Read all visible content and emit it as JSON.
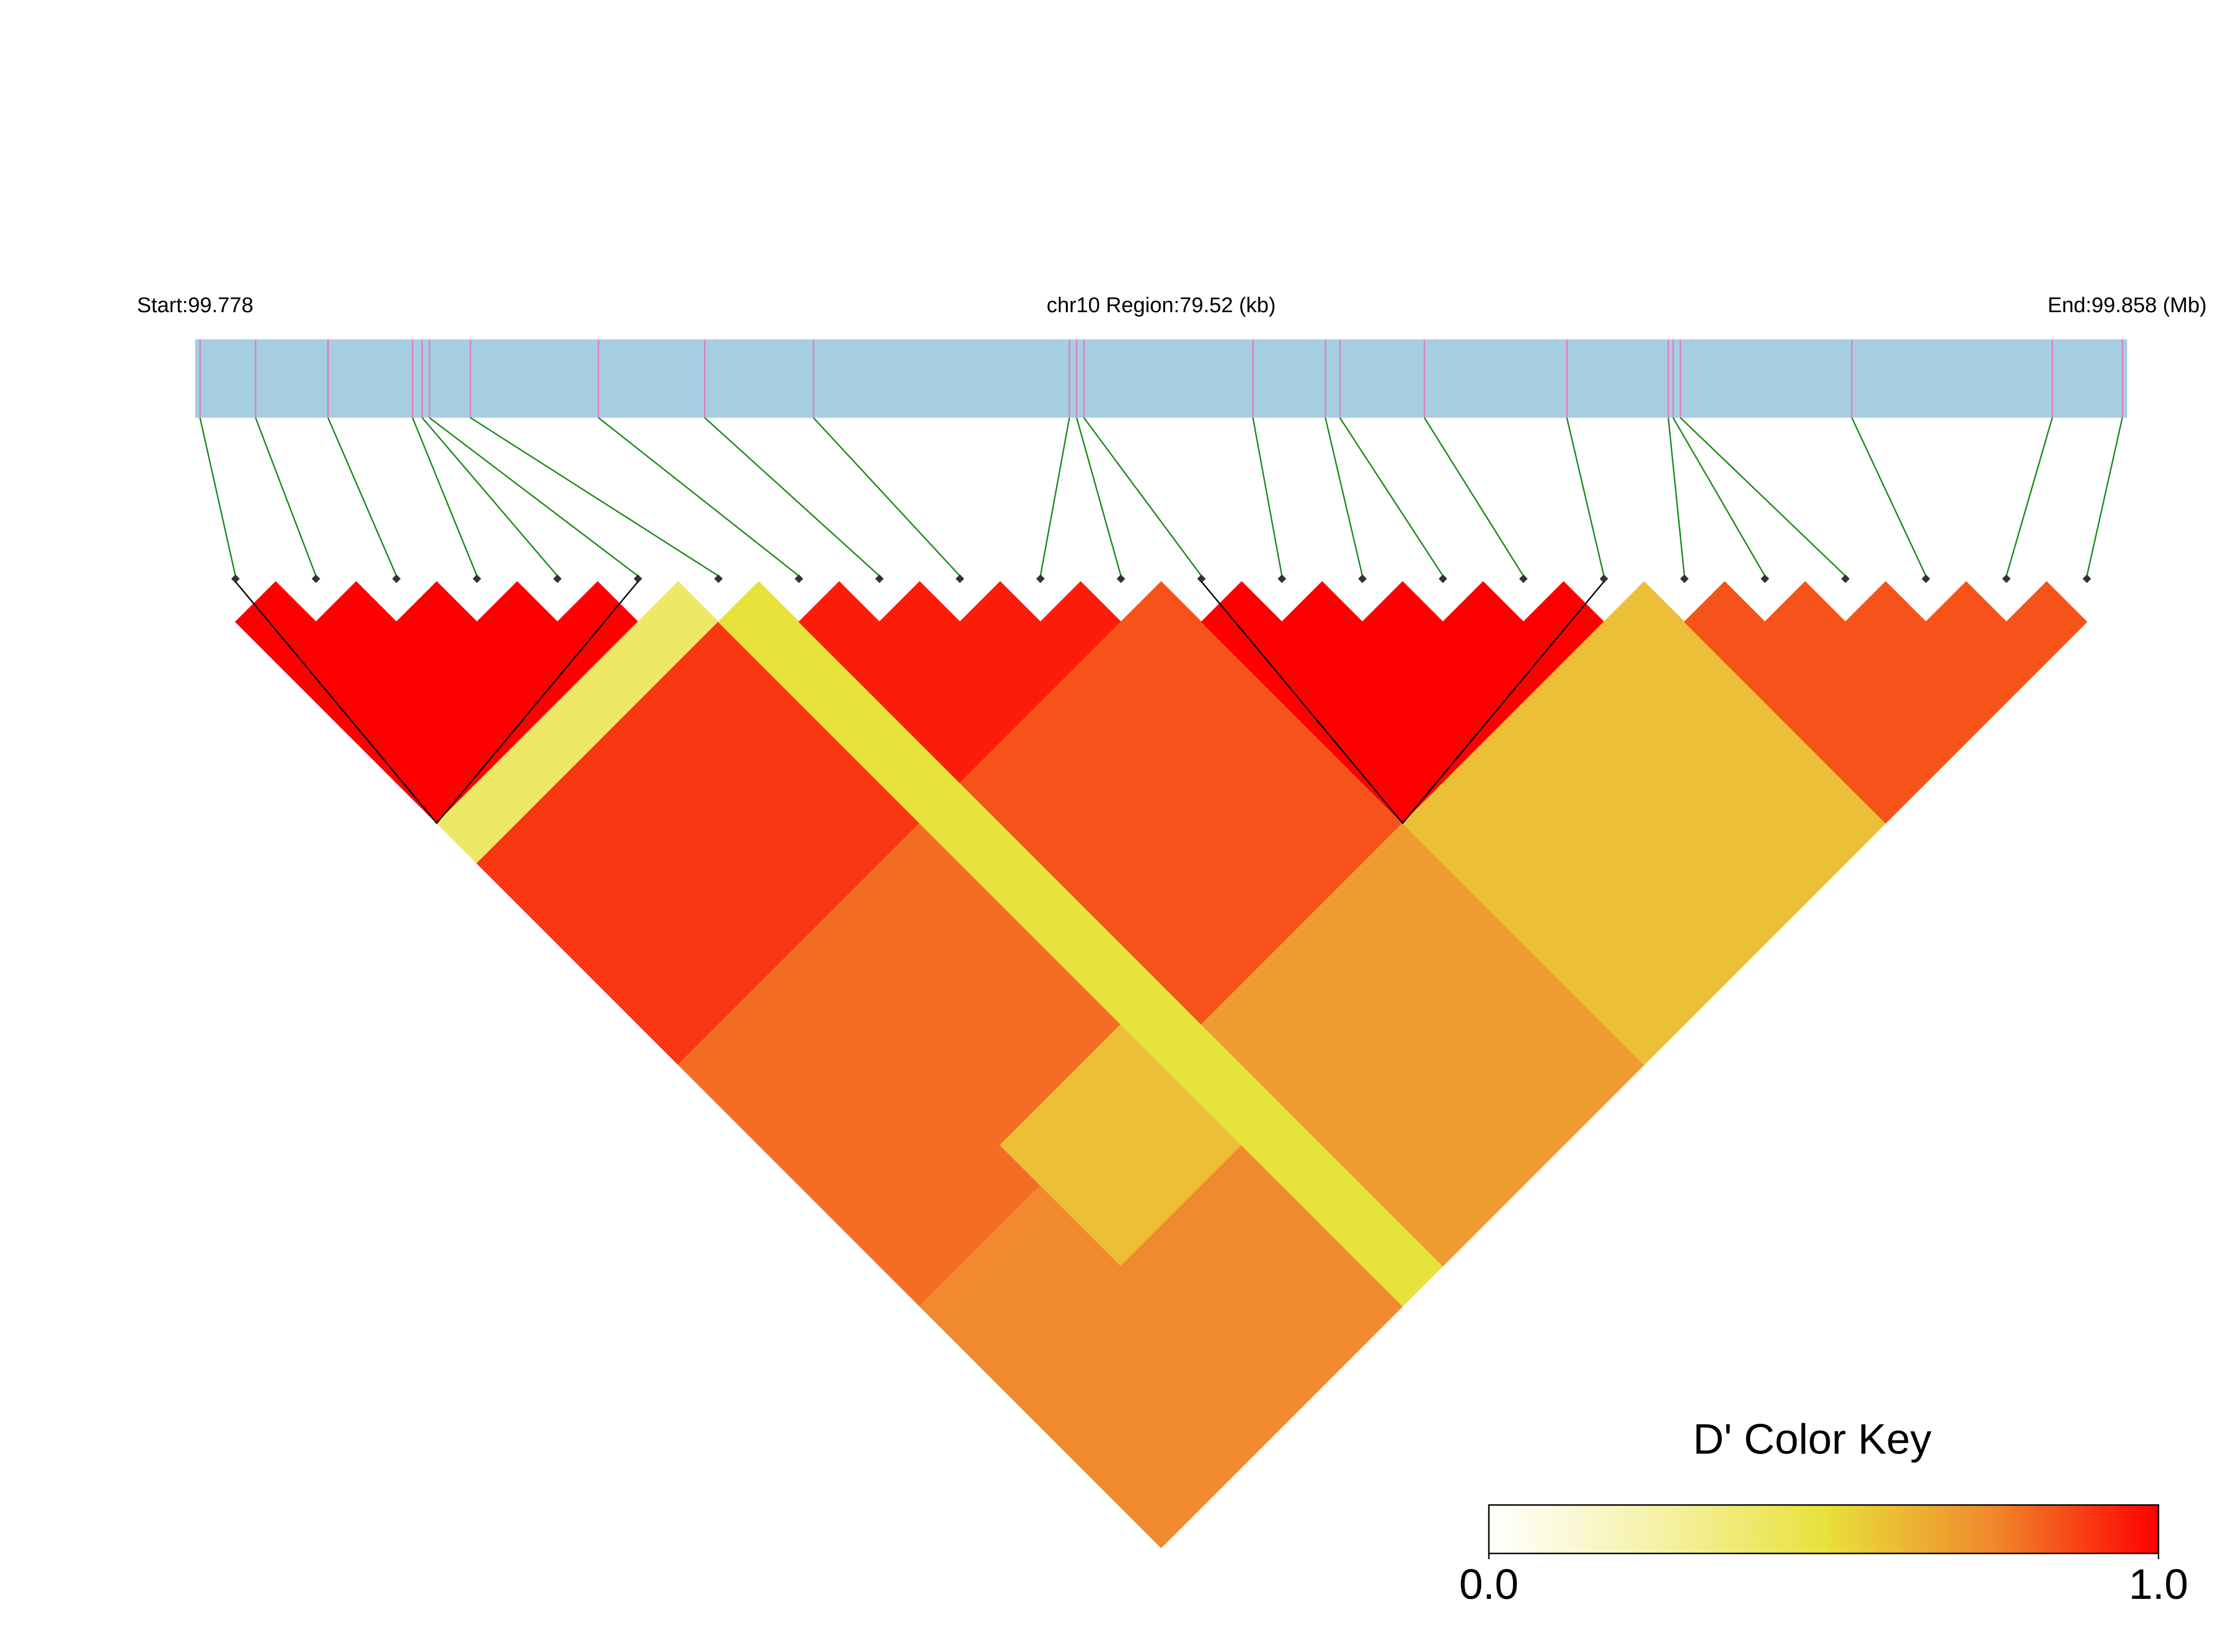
{
  "chart_data": {
    "type": "ld-heatmap",
    "start_label": "Start:99.778",
    "region_label": "chr10 Region:79.52 (kb)",
    "end_label": "End:99.858 (Mb)",
    "xlim": [
      99.778,
      99.858
    ],
    "snp_positions": [
      99.7782,
      99.7805,
      99.7835,
      99.787,
      99.7874,
      99.7877,
      99.7894,
      99.7947,
      99.7991,
      99.8036,
      99.8142,
      99.8145,
      99.8148,
      99.8218,
      99.8248,
      99.8254,
      99.8289,
      99.8348,
      99.839,
      99.8392,
      99.8395,
      99.8466,
      99.8549,
      99.8578
    ],
    "ld_matrix": [
      [
        1,
        1,
        1,
        1,
        1,
        0.4,
        0.9,
        0.9,
        0.9,
        0.9,
        0.9,
        0.8,
        0.8,
        0.8,
        0.8,
        0.8,
        0.8,
        0.75,
        0.75,
        0.75,
        0.75,
        0.75,
        0.75
      ],
      [
        1,
        1,
        1,
        1,
        0.4,
        0.9,
        0.9,
        0.9,
        0.9,
        0.9,
        0.8,
        0.8,
        0.8,
        0.8,
        0.8,
        0.8,
        0.75,
        0.75,
        0.75,
        0.75,
        0.75,
        0.75
      ],
      [
        1,
        1,
        1,
        0.4,
        0.9,
        0.9,
        0.9,
        0.9,
        0.9,
        0.8,
        0.8,
        0.8,
        0.8,
        0.8,
        0.8,
        0.75,
        0.75,
        0.75,
        0.75,
        0.75,
        0.75
      ],
      [
        1,
        1,
        0.4,
        0.9,
        0.9,
        0.9,
        0.9,
        0.9,
        0.8,
        0.8,
        0.8,
        0.8,
        0.8,
        0.6,
        0.6,
        0.6,
        0.75,
        0.75,
        0.75,
        0.75
      ],
      [
        1,
        0.4,
        0.9,
        0.9,
        0.9,
        0.9,
        0.9,
        0.8,
        0.8,
        0.8,
        0.8,
        0.8,
        0.6,
        0.6,
        0.6,
        0.75,
        0.75,
        0.75,
        0.75
      ],
      [
        0.4,
        0.9,
        0.9,
        0.9,
        0.9,
        0.9,
        0.8,
        0.8,
        0.8,
        0.8,
        0.8,
        0.6,
        0.6,
        0.6,
        0.75,
        0.75,
        0.75,
        0.75
      ],
      [
        0.5,
        0.5,
        0.5,
        0.5,
        0.5,
        0.5,
        0.5,
        0.5,
        0.5,
        0.5,
        0.5,
        0.5,
        0.5,
        0.5,
        0.5,
        0.5,
        0.5
      ],
      [
        0.95,
        0.95,
        0.95,
        0.95,
        0.85,
        0.85,
        0.85,
        0.85,
        0.85,
        0.85,
        0.7,
        0.7,
        0.7,
        0.7,
        0.7,
        0.7
      ],
      [
        0.95,
        0.95,
        0.95,
        0.85,
        0.85,
        0.85,
        0.85,
        0.85,
        0.85,
        0.7,
        0.7,
        0.7,
        0.7,
        0.7,
        0.7
      ],
      [
        0.95,
        0.95,
        0.85,
        0.85,
        0.85,
        0.85,
        0.85,
        0.85,
        0.7,
        0.7,
        0.7,
        0.7,
        0.7,
        0.7
      ],
      [
        0.95,
        0.85,
        0.85,
        0.85,
        0.85,
        0.85,
        0.85,
        0.7,
        0.7,
        0.7,
        0.7,
        0.7,
        0.7
      ],
      [
        0.85,
        0.85,
        0.85,
        0.85,
        0.85,
        0.85,
        0.7,
        0.7,
        0.7,
        0.7,
        0.7,
        0.7
      ],
      [
        1,
        1,
        1,
        1,
        1,
        0.6,
        0.6,
        0.6,
        0.6,
        0.6,
        0.6
      ],
      [
        1,
        1,
        1,
        1,
        0.6,
        0.6,
        0.6,
        0.6,
        0.6,
        0.6
      ],
      [
        1,
        1,
        1,
        0.6,
        0.6,
        0.6,
        0.6,
        0.6,
        0.6
      ],
      [
        1,
        1,
        0.6,
        0.6,
        0.6,
        0.6,
        0.6,
        0.6
      ],
      [
        1,
        0.6,
        0.6,
        0.6,
        0.6,
        0.6,
        0.6
      ],
      [
        0.6,
        0.6,
        0.6,
        0.6,
        0.6,
        0.6
      ],
      [
        0.85,
        0.85,
        0.85,
        0.85,
        0.85
      ],
      [
        0.85,
        0.85,
        0.85,
        0.85
      ],
      [
        0.85,
        0.85,
        0.85
      ],
      [
        0.85,
        0.85
      ],
      [
        0.85
      ]
    ],
    "blocks": [
      [
        0,
        5
      ],
      [
        12,
        17
      ]
    ],
    "colormap": [
      "#ffffff",
      "#f6f2a8",
      "#e8e23c",
      "#f08a2c",
      "#ff0000"
    ],
    "colorbar_title": "D' Color Key",
    "clim": [
      0,
      1
    ],
    "cticks": [
      {
        "value": 0,
        "label": "0.0"
      },
      {
        "value": 1,
        "label": "1.0"
      }
    ]
  }
}
